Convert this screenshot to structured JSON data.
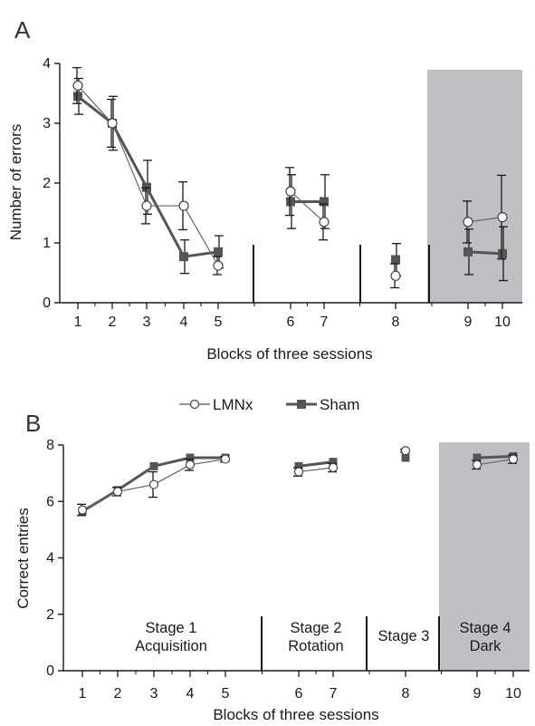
{
  "figure": {
    "legend": {
      "lmnx": "LMNx",
      "sham": "Sham"
    }
  },
  "chart_data": [
    {
      "panel": "A",
      "type": "line",
      "xlabel": "Blocks of three sessions",
      "ylabel": "Number of errors",
      "ylim": [
        0,
        4
      ],
      "yticks": [
        "0",
        "1",
        "2",
        "3",
        "4"
      ],
      "x_ticks": [
        "1",
        "2",
        "3",
        "4",
        "5",
        "6",
        "7",
        "8",
        "9",
        "10"
      ],
      "shaded_region": {
        "from_block": 9,
        "to_block": 10,
        "color": "#c0c0c4"
      },
      "separators_after_blocks": [
        5,
        7,
        8
      ],
      "segments": [
        [
          1,
          2,
          3,
          4,
          5
        ],
        [
          6,
          7
        ],
        [
          8
        ],
        [
          9,
          10
        ]
      ],
      "series": [
        {
          "name": "LMNx",
          "marker": "circle-open",
          "x": [
            1,
            2,
            3,
            4,
            5,
            6,
            7,
            8,
            9,
            10
          ],
          "y": [
            3.63,
            3.0,
            1.62,
            1.62,
            0.62,
            1.86,
            1.35,
            0.45,
            1.35,
            1.43
          ],
          "error": [
            0.3,
            0.4,
            0.3,
            0.4,
            0.15,
            0.4,
            0.3,
            0.2,
            0.35,
            0.7
          ]
        },
        {
          "name": "Sham",
          "marker": "square-filled",
          "x": [
            1,
            2,
            3,
            4,
            5,
            6,
            7,
            8,
            9,
            10
          ],
          "y": [
            3.45,
            3.0,
            1.93,
            0.77,
            0.85,
            1.69,
            1.69,
            0.72,
            0.85,
            0.82
          ],
          "error": [
            0.3,
            0.45,
            0.45,
            0.28,
            0.27,
            0.45,
            0.45,
            0.27,
            0.38,
            0.45
          ]
        }
      ]
    },
    {
      "panel": "B",
      "type": "line",
      "xlabel": "Blocks of three sessions",
      "ylabel": "Correct entries",
      "ylim": [
        0,
        8
      ],
      "yticks": [
        "0",
        "2",
        "4",
        "6",
        "8"
      ],
      "x_ticks": [
        "1",
        "2",
        "3",
        "4",
        "5",
        "6",
        "7",
        "8",
        "9",
        "10"
      ],
      "shaded_region": {
        "from_block": 9,
        "to_block": 10,
        "color": "#c0c0c4"
      },
      "separators_after_blocks": [
        5,
        7,
        8
      ],
      "segments": [
        [
          1,
          2,
          3,
          4,
          5
        ],
        [
          6,
          7
        ],
        [
          8
        ],
        [
          9,
          10
        ]
      ],
      "stages": [
        {
          "lines": [
            "Stage 1",
            "Acquisition"
          ]
        },
        {
          "lines": [
            "Stage 2",
            "Rotation"
          ]
        },
        {
          "lines": [
            "Stage 3"
          ]
        },
        {
          "lines": [
            "Stage 4",
            "Dark"
          ]
        }
      ],
      "series": [
        {
          "name": "LMNx",
          "marker": "circle-open",
          "x": [
            1,
            2,
            3,
            4,
            5,
            6,
            7,
            8,
            9,
            10
          ],
          "y": [
            5.7,
            6.35,
            6.6,
            7.3,
            7.5,
            7.05,
            7.2,
            7.8,
            7.3,
            7.5
          ],
          "error": [
            0.2,
            0.15,
            0.45,
            0.2,
            0.1,
            0.15,
            0.15,
            0.05,
            0.15,
            0.15
          ]
        },
        {
          "name": "Sham",
          "marker": "square-filled",
          "x": [
            1,
            2,
            3,
            4,
            5,
            6,
            7,
            8,
            9,
            10
          ],
          "y": [
            5.65,
            6.4,
            7.25,
            7.55,
            7.55,
            7.25,
            7.4,
            7.55,
            7.55,
            7.6
          ]
        }
      ]
    }
  ]
}
